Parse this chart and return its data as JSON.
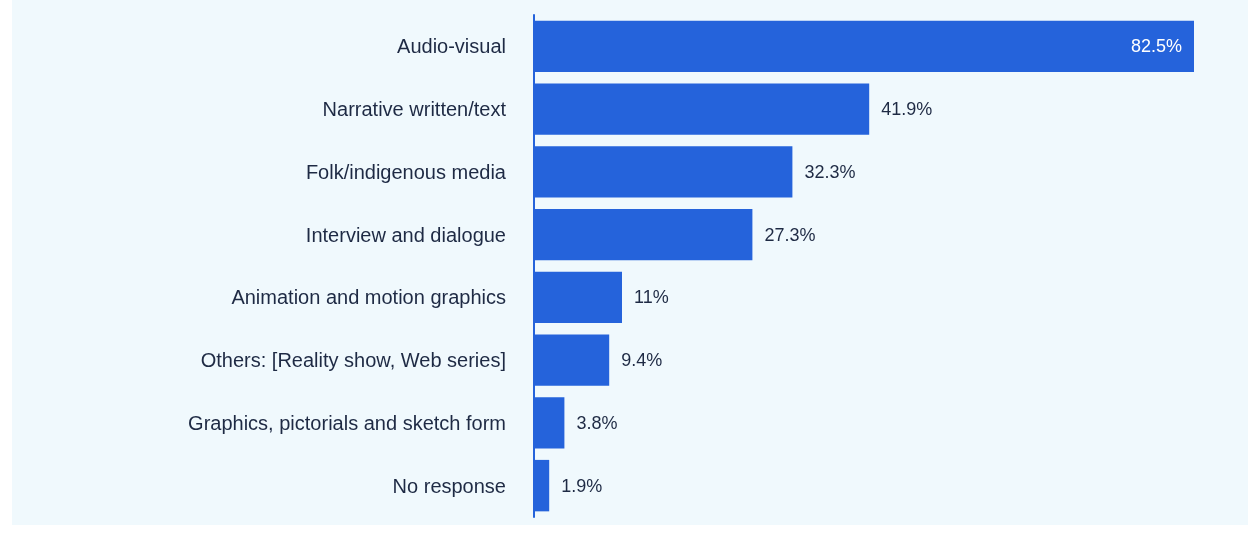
{
  "chart_data": {
    "type": "bar",
    "orientation": "horizontal",
    "categories": [
      "Audio-visual",
      "Narrative written/text",
      "Folk/indigenous media",
      "Interview and dialogue",
      "Animation and motion graphics",
      "Others: [Reality show, Web series]",
      "Graphics, pictorials and sketch form",
      "No response"
    ],
    "values": [
      82.5,
      41.9,
      32.3,
      27.3,
      11,
      9.4,
      3.8,
      1.9
    ],
    "color": "#2563db",
    "value_labels": [
      "82.5%",
      "41.9%",
      "32.3%",
      "27.3%",
      "11%",
      "9.4%",
      "3.8%",
      "1.9%"
    ],
    "tick_labels": "y"
  }
}
